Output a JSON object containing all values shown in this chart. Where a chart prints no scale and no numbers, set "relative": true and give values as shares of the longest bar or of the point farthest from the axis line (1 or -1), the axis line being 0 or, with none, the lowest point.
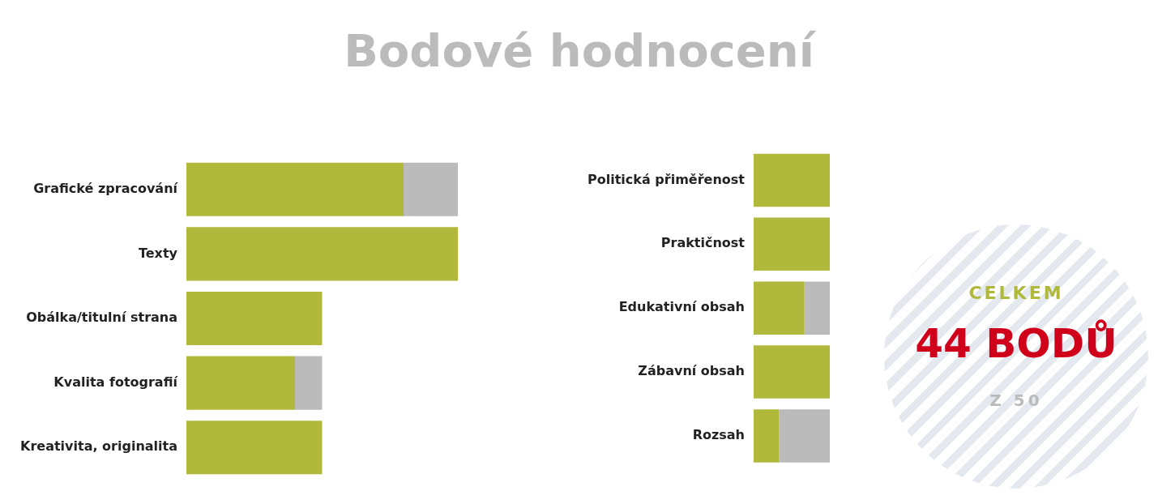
{
  "chart_data": [
    {
      "type": "bar",
      "title": "Bodové hodnocení",
      "orientation": "horizontal",
      "stacked": true,
      "relative": true,
      "legend": false,
      "categories": [
        "Grafické zpracování",
        "Texty",
        "Obálka/titulní strana",
        "Kvalita fotografií",
        "Kreativita, originalita"
      ],
      "series": [
        {
          "color": "#b0b93c",
          "values": [
            0.8,
            1,
            0.5,
            0.4,
            0.5
          ]
        },
        {
          "color": "#bbbbbb",
          "values": [
            0.2,
            0,
            0,
            0.1,
            0
          ]
        }
      ]
    },
    {
      "type": "bar",
      "orientation": "horizontal",
      "stacked": true,
      "relative": true,
      "legend": false,
      "categories": [
        "Politická přiměřenost",
        "Praktičnost",
        "Edukativní obsah",
        "Zábavní obsah",
        "Rozsah"
      ],
      "series": [
        {
          "color": "#b0b93c",
          "values": [
            1,
            1,
            0.667,
            1,
            0.333
          ]
        },
        {
          "color": "#bbbbbb",
          "values": [
            0,
            0,
            0.333,
            0,
            0.667
          ]
        }
      ]
    },
    {
      "type": "other",
      "title": "CELKEM",
      "annotations": [
        "44 BODŮ",
        "Z 50"
      ]
    }
  ]
}
